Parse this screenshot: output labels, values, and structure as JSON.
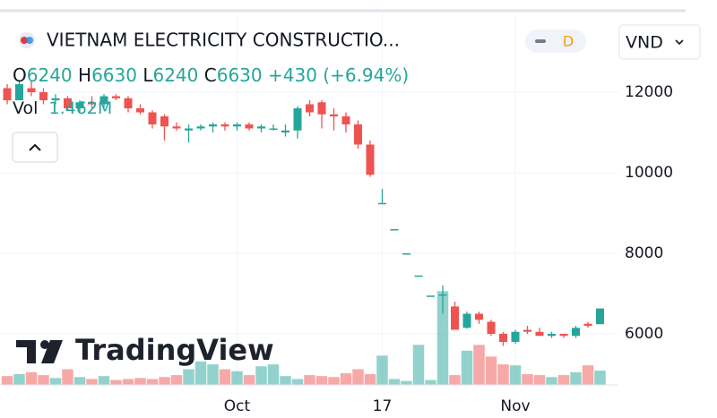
{
  "chart_data": {
    "type": "candlestick",
    "title": "VIETNAM ELECTRICITY CONSTRUCTIO...",
    "interval": "D",
    "currency": "VND",
    "watermark": "TradingView",
    "legend": {
      "open_label": "O",
      "high_label": "H",
      "low_label": "L",
      "close_label": "C",
      "change": {
        "value": 430,
        "label": "+430"
      },
      "change_percent": {
        "value": 6.94,
        "label": "(+6.94%)"
      },
      "volume_label": "Vol",
      "last_volume_label": "1.462M"
    },
    "up_color": "#26a69a",
    "down_color": "#ef5350",
    "categories": [
      null,
      null,
      null,
      null,
      null,
      null,
      null,
      null,
      null,
      null,
      null,
      null,
      null,
      null,
      null,
      null,
      null,
      null,
      null,
      "Oct",
      null,
      null,
      null,
      null,
      null,
      null,
      null,
      null,
      null,
      null,
      null,
      "17",
      null,
      null,
      null,
      null,
      null,
      null,
      null,
      null,
      null,
      null,
      "Nov",
      null,
      null,
      null,
      null,
      null,
      null,
      null
    ],
    "ohlc": [
      [
        12100,
        12200,
        11700,
        11800
      ],
      [
        11800,
        12300,
        11800,
        12200
      ],
      [
        12100,
        12300,
        11900,
        12000
      ],
      [
        12000,
        12100,
        11700,
        11800
      ],
      [
        11800,
        11950,
        11700,
        11850
      ],
      [
        11850,
        11900,
        11550,
        11600
      ],
      [
        11600,
        11800,
        11500,
        11750
      ],
      [
        11750,
        11900,
        11600,
        11700
      ],
      [
        11700,
        11950,
        11600,
        11900
      ],
      [
        11900,
        11950,
        11800,
        11850
      ],
      [
        11850,
        11900,
        11500,
        11600
      ],
      [
        11600,
        11700,
        11450,
        11500
      ],
      [
        11500,
        11550,
        11100,
        11200
      ],
      [
        11400,
        11450,
        10800,
        11150
      ],
      [
        11150,
        11250,
        11050,
        11100
      ],
      [
        11050,
        11200,
        10750,
        11100
      ],
      [
        11100,
        11200,
        11050,
        11150
      ],
      [
        11150,
        11250,
        11000,
        11200
      ],
      [
        11200,
        11250,
        11050,
        11150
      ],
      [
        11150,
        11250,
        11050,
        11200
      ],
      [
        11200,
        11250,
        11050,
        11100
      ],
      [
        11100,
        11200,
        11000,
        11150
      ],
      [
        11100,
        11200,
        11050,
        11100
      ],
      [
        11000,
        11200,
        10900,
        11050
      ],
      [
        11050,
        11650,
        10850,
        11600
      ],
      [
        11700,
        11800,
        11400,
        11500
      ],
      [
        11750,
        11800,
        11100,
        11450
      ],
      [
        11450,
        11600,
        11050,
        11400
      ],
      [
        11400,
        11500,
        11000,
        11200
      ],
      [
        11200,
        11300,
        10600,
        10700
      ],
      [
        10700,
        10800,
        9900,
        9950
      ],
      [
        9250,
        9600,
        9250,
        9250
      ],
      [
        8600,
        8600,
        8600,
        8600
      ],
      [
        8000,
        8000,
        8000,
        8000
      ],
      [
        7450,
        7450,
        7450,
        7450
      ],
      [
        6950,
        6950,
        6950,
        6950
      ],
      [
        6980,
        7200,
        6500,
        6980
      ],
      [
        6680,
        6800,
        6100,
        6100
      ],
      [
        6150,
        6550,
        6130,
        6500
      ],
      [
        6500,
        6550,
        6250,
        6350
      ],
      [
        6300,
        6350,
        5950,
        6000
      ],
      [
        6000,
        6050,
        5700,
        5800
      ],
      [
        5800,
        6100,
        5750,
        6050
      ],
      [
        6100,
        6200,
        6000,
        6050
      ],
      [
        6050,
        6150,
        5950,
        5950
      ],
      [
        5950,
        6050,
        5900,
        6000
      ],
      [
        6000,
        6000,
        5900,
        5950
      ],
      [
        5950,
        6200,
        5900,
        6150
      ],
      [
        6250,
        6300,
        6150,
        6200
      ],
      [
        6240,
        6630,
        6240,
        6630
      ]
    ],
    "volume": [
      0.9,
      1.1,
      1.3,
      1.0,
      0.7,
      1.6,
      0.8,
      0.6,
      0.9,
      0.5,
      0.6,
      0.7,
      0.6,
      0.8,
      1.0,
      1.6,
      2.4,
      2.1,
      1.6,
      1.4,
      1.0,
      1.9,
      2.1,
      0.9,
      0.6,
      1.0,
      0.9,
      0.8,
      1.2,
      1.6,
      1.1,
      3.0,
      0.6,
      0.4,
      4.1,
      0.5,
      9.6,
      1.0,
      3.5,
      4.1,
      2.9,
      2.1,
      2.0,
      1.1,
      1.0,
      0.8,
      1.0,
      1.3,
      2.0,
      1.462
    ],
    "volume_lim": [
      0,
      11
    ],
    "ylim": [
      4733,
      13956
    ],
    "yticks": [
      6000,
      8000,
      10000,
      12000
    ],
    "grid": true
  }
}
